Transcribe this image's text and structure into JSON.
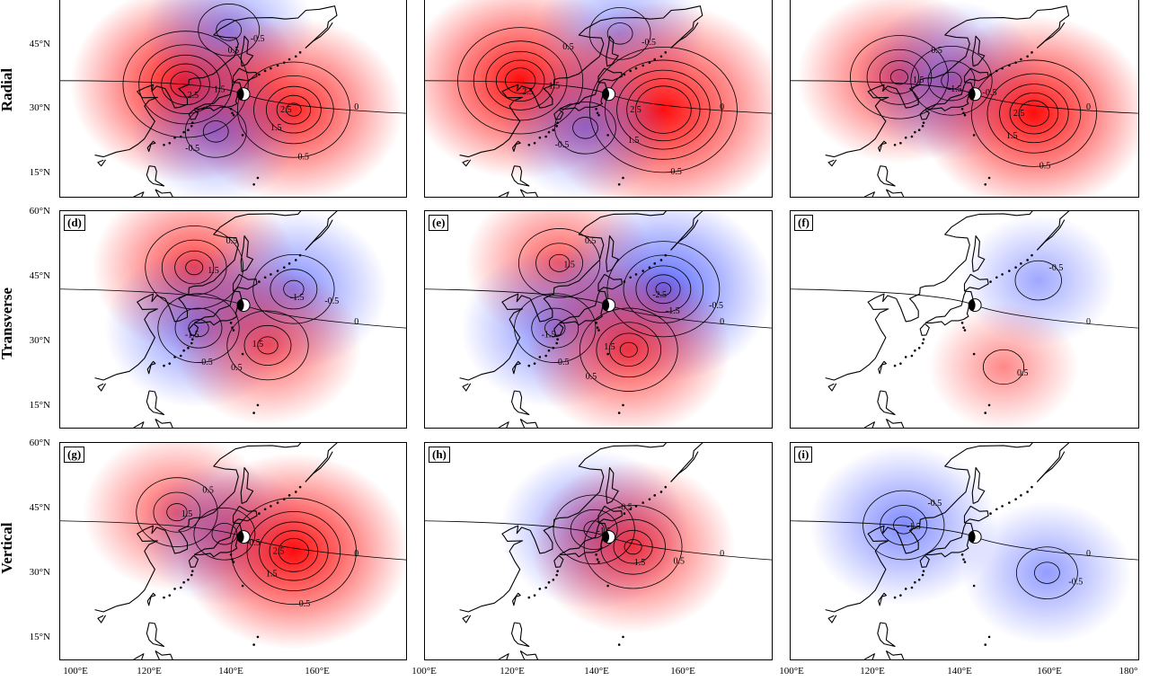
{
  "rows": [
    {
      "label": "Radial"
    },
    {
      "label": "Transverse"
    },
    {
      "label": "Vertical"
    }
  ],
  "latitude_labels": [
    "60°N",
    "45°N",
    "30°N",
    "15°N"
  ],
  "longitude_labels": [
    "100°E",
    "120°E",
    "140°E",
    "160°E",
    "180°"
  ],
  "panels": [
    {
      "id": "a",
      "label": "",
      "lobes": [
        {
          "sign": "pos",
          "lon": 129,
          "lat": 41,
          "amp": 3.0
        },
        {
          "sign": "neg",
          "lon": 139,
          "lat": 56,
          "amp": 1.0
        },
        {
          "sign": "pos",
          "lon": 154,
          "lat": 34,
          "amp": 2.5
        },
        {
          "sign": "neg",
          "lon": 136,
          "lat": 28,
          "amp": 1.0
        }
      ]
    },
    {
      "id": "b",
      "label": "",
      "lobes": [
        {
          "sign": "pos",
          "lon": 122,
          "lat": 42,
          "amp": 3.0
        },
        {
          "sign": "neg",
          "lon": 145,
          "lat": 55,
          "amp": 1.0
        },
        {
          "sign": "pos",
          "lon": 155,
          "lat": 34,
          "amp": 4.0
        },
        {
          "sign": "neg",
          "lon": 137,
          "lat": 29,
          "amp": 1.0
        }
      ]
    },
    {
      "id": "c",
      "label": "",
      "lobes": [
        {
          "sign": "pos",
          "lon": 125,
          "lat": 43,
          "amp": 2.0
        },
        {
          "sign": "neg",
          "lon": 137,
          "lat": 42,
          "amp": 1.5
        },
        {
          "sign": "pos",
          "lon": 156,
          "lat": 33,
          "amp": 3.0
        }
      ]
    },
    {
      "id": "d",
      "label": "(d)",
      "lobes": [
        {
          "sign": "pos",
          "lon": 131,
          "lat": 47,
          "amp": 2.0
        },
        {
          "sign": "neg",
          "lon": 154,
          "lat": 42,
          "amp": 1.5
        },
        {
          "sign": "neg",
          "lon": 132,
          "lat": 33,
          "amp": 1.5
        },
        {
          "sign": "pos",
          "lon": 148,
          "lat": 29,
          "amp": 1.5
        }
      ]
    },
    {
      "id": "e",
      "label": "(e)",
      "lobes": [
        {
          "sign": "pos",
          "lon": 131,
          "lat": 48,
          "amp": 1.5
        },
        {
          "sign": "neg",
          "lon": 155,
          "lat": 42,
          "amp": 2.5
        },
        {
          "sign": "neg",
          "lon": 130,
          "lat": 33,
          "amp": 1.5
        },
        {
          "sign": "pos",
          "lon": 147,
          "lat": 28,
          "amp": 2.0
        }
      ]
    },
    {
      "id": "f",
      "label": "(f)",
      "lobes": [
        {
          "sign": "neg",
          "lon": 157,
          "lat": 44,
          "amp": 0.7
        },
        {
          "sign": "pos",
          "lon": 149,
          "lat": 24,
          "amp": 0.6
        }
      ]
    },
    {
      "id": "g",
      "label": "(g)",
      "lobes": [
        {
          "sign": "pos",
          "lon": 127,
          "lat": 44,
          "amp": 1.5
        },
        {
          "sign": "neg",
          "lon": 138,
          "lat": 39,
          "amp": 1.0
        },
        {
          "sign": "pos",
          "lon": 154,
          "lat": 35,
          "amp": 3.0
        }
      ]
    },
    {
      "id": "h",
      "label": "(h)",
      "lobes": [
        {
          "sign": "neg",
          "lon": 139,
          "lat": 40,
          "amp": 1.5
        },
        {
          "sign": "pos",
          "lon": 148,
          "lat": 36,
          "amp": 2.0
        }
      ]
    },
    {
      "id": "i",
      "label": "(i)",
      "lobes": [
        {
          "sign": "neg",
          "lon": 126,
          "lat": 41,
          "amp": 1.5
        },
        {
          "sign": "neg",
          "lon": 159,
          "lat": 30,
          "amp": 1.0
        }
      ]
    }
  ],
  "contour_levels": [
    "0.5",
    "1",
    "1.5",
    "2",
    "2.5"
  ],
  "zero_label": "0",
  "negative_prefix": "-",
  "colors": {
    "positive": "#ff0000",
    "negative": "#3a4cff",
    "coast": "#000000"
  },
  "event": {
    "lon": 142.4,
    "lat": 38.3
  }
}
